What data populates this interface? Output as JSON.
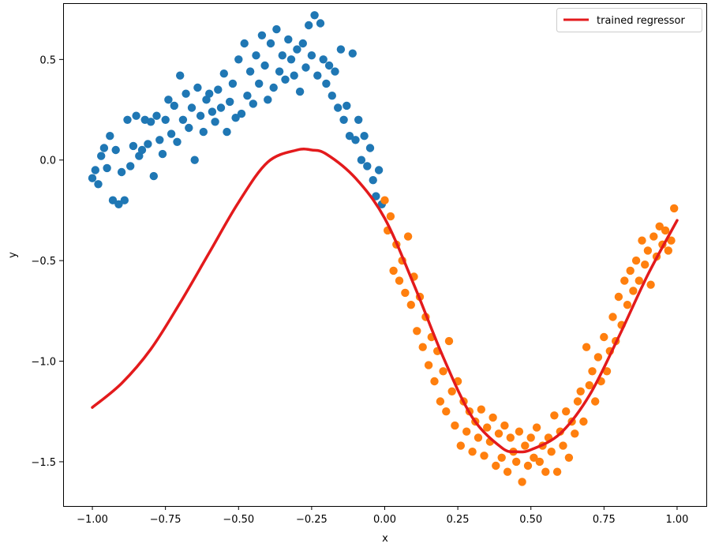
{
  "chart_data": {
    "type": "scatter",
    "title": "",
    "xlabel": "x",
    "ylabel": "y",
    "xlim": [
      -1.1,
      1.1
    ],
    "ylim": [
      -1.72,
      0.78
    ],
    "xticks": [
      -1.0,
      -0.75,
      -0.5,
      -0.25,
      0.0,
      0.25,
      0.5,
      0.75,
      1.0
    ],
    "xtick_labels": [
      "−1.00",
      "−0.75",
      "−0.50",
      "−0.25",
      "0.00",
      "0.25",
      "0.50",
      "0.75",
      "1.00"
    ],
    "yticks": [
      0.5,
      0.0,
      -0.5,
      -1.0,
      -1.5
    ],
    "ytick_labels": [
      "0.5",
      "0.0",
      "−0.5",
      "−1.0",
      "−1.5"
    ],
    "grid": false,
    "legend_position": "top-right",
    "series": [
      {
        "kind": "scatter",
        "color": "#1f77b4",
        "x_range": [
          -1.0,
          0.0
        ],
        "points": [
          [
            -1.0,
            -0.09
          ],
          [
            -0.99,
            -0.05
          ],
          [
            -0.98,
            -0.12
          ],
          [
            -0.97,
            0.02
          ],
          [
            -0.96,
            0.06
          ],
          [
            -0.95,
            -0.04
          ],
          [
            -0.94,
            0.12
          ],
          [
            -0.93,
            -0.2
          ],
          [
            -0.92,
            0.05
          ],
          [
            -0.91,
            -0.22
          ],
          [
            -0.9,
            -0.06
          ],
          [
            -0.89,
            -0.2
          ],
          [
            -0.88,
            0.2
          ],
          [
            -0.87,
            -0.03
          ],
          [
            -0.86,
            0.07
          ],
          [
            -0.85,
            0.22
          ],
          [
            -0.84,
            0.02
          ],
          [
            -0.83,
            0.05
          ],
          [
            -0.82,
            0.2
          ],
          [
            -0.81,
            0.08
          ],
          [
            -0.8,
            0.19
          ],
          [
            -0.79,
            -0.08
          ],
          [
            -0.78,
            0.22
          ],
          [
            -0.77,
            0.1
          ],
          [
            -0.76,
            0.03
          ],
          [
            -0.75,
            0.2
          ],
          [
            -0.74,
            0.3
          ],
          [
            -0.73,
            0.13
          ],
          [
            -0.72,
            0.27
          ],
          [
            -0.71,
            0.09
          ],
          [
            -0.7,
            0.42
          ],
          [
            -0.69,
            0.2
          ],
          [
            -0.68,
            0.33
          ],
          [
            -0.67,
            0.16
          ],
          [
            -0.66,
            0.26
          ],
          [
            -0.65,
            0.0
          ],
          [
            -0.64,
            0.36
          ],
          [
            -0.63,
            0.22
          ],
          [
            -0.62,
            0.14
          ],
          [
            -0.61,
            0.3
          ],
          [
            -0.6,
            0.33
          ],
          [
            -0.59,
            0.24
          ],
          [
            -0.58,
            0.19
          ],
          [
            -0.57,
            0.35
          ],
          [
            -0.56,
            0.26
          ],
          [
            -0.55,
            0.43
          ],
          [
            -0.54,
            0.14
          ],
          [
            -0.53,
            0.29
          ],
          [
            -0.52,
            0.38
          ],
          [
            -0.51,
            0.21
          ],
          [
            -0.5,
            0.5
          ],
          [
            -0.49,
            0.23
          ],
          [
            -0.48,
            0.58
          ],
          [
            -0.47,
            0.32
          ],
          [
            -0.46,
            0.44
          ],
          [
            -0.45,
            0.28
          ],
          [
            -0.44,
            0.52
          ],
          [
            -0.43,
            0.38
          ],
          [
            -0.42,
            0.62
          ],
          [
            -0.41,
            0.47
          ],
          [
            -0.4,
            0.3
          ],
          [
            -0.39,
            0.58
          ],
          [
            -0.38,
            0.36
          ],
          [
            -0.37,
            0.65
          ],
          [
            -0.36,
            0.44
          ],
          [
            -0.35,
            0.52
          ],
          [
            -0.34,
            0.4
          ],
          [
            -0.33,
            0.6
          ],
          [
            -0.32,
            0.5
          ],
          [
            -0.31,
            0.42
          ],
          [
            -0.3,
            0.55
          ],
          [
            -0.29,
            0.34
          ],
          [
            -0.28,
            0.58
          ],
          [
            -0.27,
            0.46
          ],
          [
            -0.26,
            0.67
          ],
          [
            -0.25,
            0.52
          ],
          [
            -0.24,
            0.72
          ],
          [
            -0.23,
            0.42
          ],
          [
            -0.22,
            0.68
          ],
          [
            -0.21,
            0.5
          ],
          [
            -0.2,
            0.38
          ],
          [
            -0.19,
            0.47
          ],
          [
            -0.18,
            0.32
          ],
          [
            -0.17,
            0.44
          ],
          [
            -0.16,
            0.26
          ],
          [
            -0.15,
            0.55
          ],
          [
            -0.14,
            0.2
          ],
          [
            -0.13,
            0.27
          ],
          [
            -0.12,
            0.12
          ],
          [
            -0.11,
            0.53
          ],
          [
            -0.1,
            0.1
          ],
          [
            -0.09,
            0.2
          ],
          [
            -0.08,
            0.0
          ],
          [
            -0.07,
            0.12
          ],
          [
            -0.06,
            -0.03
          ],
          [
            -0.05,
            0.06
          ],
          [
            -0.04,
            -0.1
          ],
          [
            -0.03,
            -0.18
          ],
          [
            -0.02,
            -0.05
          ],
          [
            -0.01,
            -0.22
          ]
        ]
      },
      {
        "kind": "scatter",
        "color": "#ff7f0e",
        "x_range": [
          0.0,
          1.0
        ],
        "points": [
          [
            0.0,
            -0.2
          ],
          [
            0.01,
            -0.35
          ],
          [
            0.02,
            -0.28
          ],
          [
            0.03,
            -0.55
          ],
          [
            0.04,
            -0.42
          ],
          [
            0.05,
            -0.6
          ],
          [
            0.06,
            -0.5
          ],
          [
            0.07,
            -0.66
          ],
          [
            0.08,
            -0.38
          ],
          [
            0.09,
            -0.72
          ],
          [
            0.1,
            -0.58
          ],
          [
            0.11,
            -0.85
          ],
          [
            0.12,
            -0.68
          ],
          [
            0.13,
            -0.93
          ],
          [
            0.14,
            -0.78
          ],
          [
            0.15,
            -1.02
          ],
          [
            0.16,
            -0.88
          ],
          [
            0.17,
            -1.1
          ],
          [
            0.18,
            -0.95
          ],
          [
            0.19,
            -1.2
          ],
          [
            0.2,
            -1.05
          ],
          [
            0.21,
            -1.25
          ],
          [
            0.22,
            -0.9
          ],
          [
            0.23,
            -1.15
          ],
          [
            0.24,
            -1.32
          ],
          [
            0.25,
            -1.1
          ],
          [
            0.26,
            -1.42
          ],
          [
            0.27,
            -1.2
          ],
          [
            0.28,
            -1.35
          ],
          [
            0.29,
            -1.25
          ],
          [
            0.3,
            -1.45
          ],
          [
            0.31,
            -1.3
          ],
          [
            0.32,
            -1.38
          ],
          [
            0.33,
            -1.24
          ],
          [
            0.34,
            -1.47
          ],
          [
            0.35,
            -1.33
          ],
          [
            0.36,
            -1.4
          ],
          [
            0.37,
            -1.28
          ],
          [
            0.38,
            -1.52
          ],
          [
            0.39,
            -1.36
          ],
          [
            0.4,
            -1.48
          ],
          [
            0.41,
            -1.32
          ],
          [
            0.42,
            -1.55
          ],
          [
            0.43,
            -1.38
          ],
          [
            0.44,
            -1.45
          ],
          [
            0.45,
            -1.5
          ],
          [
            0.46,
            -1.35
          ],
          [
            0.47,
            -1.6
          ],
          [
            0.48,
            -1.42
          ],
          [
            0.49,
            -1.52
          ],
          [
            0.5,
            -1.38
          ],
          [
            0.51,
            -1.48
          ],
          [
            0.52,
            -1.33
          ],
          [
            0.53,
            -1.5
          ],
          [
            0.54,
            -1.42
          ],
          [
            0.55,
            -1.55
          ],
          [
            0.56,
            -1.38
          ],
          [
            0.57,
            -1.45
          ],
          [
            0.58,
            -1.27
          ],
          [
            0.59,
            -1.55
          ],
          [
            0.6,
            -1.35
          ],
          [
            0.61,
            -1.42
          ],
          [
            0.62,
            -1.25
          ],
          [
            0.63,
            -1.48
          ],
          [
            0.64,
            -1.3
          ],
          [
            0.65,
            -1.36
          ],
          [
            0.66,
            -1.2
          ],
          [
            0.67,
            -1.15
          ],
          [
            0.68,
            -1.3
          ],
          [
            0.69,
            -0.93
          ],
          [
            0.7,
            -1.12
          ],
          [
            0.71,
            -1.05
          ],
          [
            0.72,
            -1.2
          ],
          [
            0.73,
            -0.98
          ],
          [
            0.74,
            -1.1
          ],
          [
            0.75,
            -0.88
          ],
          [
            0.76,
            -1.05
          ],
          [
            0.77,
            -0.95
          ],
          [
            0.78,
            -0.78
          ],
          [
            0.79,
            -0.9
          ],
          [
            0.8,
            -0.68
          ],
          [
            0.81,
            -0.82
          ],
          [
            0.82,
            -0.6
          ],
          [
            0.83,
            -0.72
          ],
          [
            0.84,
            -0.55
          ],
          [
            0.85,
            -0.65
          ],
          [
            0.86,
            -0.5
          ],
          [
            0.87,
            -0.6
          ],
          [
            0.88,
            -0.4
          ],
          [
            0.89,
            -0.52
          ],
          [
            0.9,
            -0.45
          ],
          [
            0.91,
            -0.62
          ],
          [
            0.92,
            -0.38
          ],
          [
            0.93,
            -0.48
          ],
          [
            0.94,
            -0.33
          ],
          [
            0.95,
            -0.42
          ],
          [
            0.96,
            -0.35
          ],
          [
            0.97,
            -0.45
          ],
          [
            0.98,
            -0.4
          ],
          [
            0.99,
            -0.24
          ]
        ]
      },
      {
        "kind": "line",
        "name": "trained regressor",
        "color": "#e31a1c",
        "x": [
          -1.0,
          -0.9,
          -0.8,
          -0.7,
          -0.6,
          -0.5,
          -0.4,
          -0.3,
          -0.25,
          -0.2,
          -0.1,
          0.0,
          0.1,
          0.2,
          0.3,
          0.4,
          0.45,
          0.5,
          0.6,
          0.7,
          0.8,
          0.9,
          1.0
        ],
        "y": [
          -1.23,
          -1.11,
          -0.94,
          -0.71,
          -0.46,
          -0.21,
          -0.01,
          0.05,
          0.05,
          0.03,
          -0.09,
          -0.29,
          -0.62,
          -0.98,
          -1.28,
          -1.43,
          -1.45,
          -1.44,
          -1.36,
          -1.17,
          -0.88,
          -0.57,
          -0.3
        ]
      }
    ]
  }
}
